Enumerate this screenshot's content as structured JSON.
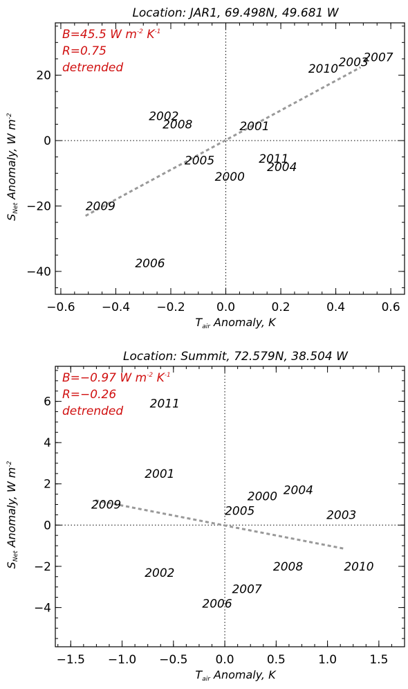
{
  "chart_data": [
    {
      "type": "scatter",
      "title": "Location: JAR1, 69.498N, 49.681 W",
      "xlabel_main": "T",
      "xlabel_sub": "air",
      "xlabel_rest": " Anomaly, K",
      "ylabel_main": "S",
      "ylabel_sub": "Net",
      "ylabel_rest": " Anomaly, W m",
      "ylabel_sup": "-2",
      "xlim": [
        -0.62,
        0.65
      ],
      "ylim": [
        -47,
        36
      ],
      "xticks": [
        -0.6,
        -0.4,
        -0.2,
        0.0,
        0.2,
        0.4,
        0.6
      ],
      "xtick_labels": [
        "−0.6",
        "−0.4",
        "−0.2",
        "0.0",
        "0.2",
        "0.4",
        "0.6"
      ],
      "yticks": [
        -40,
        -20,
        0,
        20
      ],
      "ytick_labels": [
        "−40",
        "−20",
        "0",
        "20"
      ],
      "stats": {
        "slope_main": "B=45.5 W m",
        "slope_sup1": "-2",
        "slope_mid": " K",
        "slope_sup2": "-1",
        "r": "R=0.75",
        "note": "detrended",
        "color": "#d01010"
      },
      "fit_line": {
        "x": [
          -0.51,
          0.49
        ],
        "y": [
          -23,
          22.4
        ],
        "color": "#999999"
      },
      "points": [
        {
          "year": "2007",
          "x": 0.5,
          "y": 25.5
        },
        {
          "year": "2003",
          "x": 0.41,
          "y": 24.0
        },
        {
          "year": "2010",
          "x": 0.3,
          "y": 22.0
        },
        {
          "year": "2002",
          "x": -0.28,
          "y": 7.5
        },
        {
          "year": "2008",
          "x": -0.23,
          "y": 5.0
        },
        {
          "year": "2001",
          "x": 0.05,
          "y": 4.5
        },
        {
          "year": "2005",
          "x": -0.15,
          "y": -6.0
        },
        {
          "year": "2011",
          "x": 0.12,
          "y": -5.5
        },
        {
          "year": "2004",
          "x": 0.15,
          "y": -8.0
        },
        {
          "year": "2000",
          "x": -0.04,
          "y": -11.0
        },
        {
          "year": "2009",
          "x": -0.51,
          "y": -20.0
        },
        {
          "year": "2006",
          "x": -0.33,
          "y": -37.5
        }
      ]
    },
    {
      "type": "scatter",
      "title": "Location: Summit, 72.579N, 38.504 W",
      "xlabel_main": "T",
      "xlabel_sub": "air",
      "xlabel_rest": " Anomaly, K",
      "ylabel_main": "S",
      "ylabel_sub": "Net",
      "ylabel_rest": " Anomaly, W m",
      "ylabel_sup": "-2",
      "xlim": [
        -1.65,
        1.75
      ],
      "ylim": [
        -5.9,
        7.7
      ],
      "xticks": [
        -1.5,
        -1.0,
        -0.5,
        0.0,
        0.5,
        1.0,
        1.5
      ],
      "xtick_labels": [
        "−1.5",
        "−1.0",
        "−0.5",
        "0.0",
        "0.5",
        "1.0",
        "1.5"
      ],
      "yticks": [
        -4,
        -2,
        0,
        2,
        4,
        6
      ],
      "ytick_labels": [
        "−4",
        "−2",
        "0",
        "2",
        "4",
        "6"
      ],
      "stats": {
        "slope_main": "B=−0.97 W m",
        "slope_sup1": "-2",
        "slope_mid": " K",
        "slope_sup2": "-1",
        "r": "R=−0.26",
        "note": "detrended",
        "color": "#d01010"
      },
      "fit_line": {
        "x": [
          -1.26,
          1.17
        ],
        "y": [
          1.2,
          -1.15
        ],
        "color": "#999999"
      },
      "points": [
        {
          "year": "2011",
          "x": -0.73,
          "y": 5.9
        },
        {
          "year": "2001",
          "x": -0.78,
          "y": 2.5
        },
        {
          "year": "2009",
          "x": -1.3,
          "y": 1.0
        },
        {
          "year": "2000",
          "x": 0.22,
          "y": 1.4
        },
        {
          "year": "2004",
          "x": 0.57,
          "y": 1.7
        },
        {
          "year": "2005",
          "x": 0.0,
          "y": 0.7
        },
        {
          "year": "2003",
          "x": 0.99,
          "y": 0.5
        },
        {
          "year": "2008",
          "x": 0.47,
          "y": -2.0
        },
        {
          "year": "2010",
          "x": 1.16,
          "y": -2.0
        },
        {
          "year": "2002",
          "x": -0.78,
          "y": -2.3
        },
        {
          "year": "2007",
          "x": 0.07,
          "y": -3.1
        },
        {
          "year": "2006",
          "x": -0.22,
          "y": -3.8
        }
      ]
    }
  ]
}
